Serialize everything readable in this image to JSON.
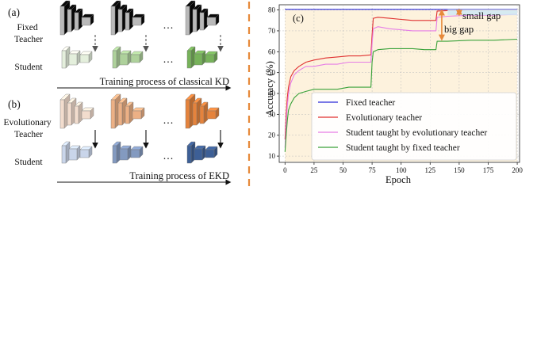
{
  "panel_a": {
    "tag": "(a)",
    "teacher_label": "Fixed\nTeacher",
    "student_label": "Student",
    "ellipsis": "···",
    "caption": "Training process of classical KD",
    "colors": {
      "teacher_fill": "#b9b9b9",
      "student_tint_start": "#e4efdc",
      "student_tint_end": "#77b25a",
      "arrow": "#555555"
    },
    "arrow_style": "dashed"
  },
  "panel_b": {
    "tag": "(b)",
    "teacher_label": "Evolutionary\nTeacher",
    "student_label": "Student",
    "ellipsis": "···",
    "caption": "Training process of EKD",
    "colors": {
      "teacher_tint_start": "#f2dccd",
      "teacher_tint_end": "#e5833c",
      "student_tint_start": "#c9d5ea",
      "student_tint_end": "#3d5f96",
      "arrow": "#111111"
    },
    "arrow_style": "solid"
  },
  "separator": {
    "color": "#e7893a",
    "style": "dashed"
  },
  "panel_c": {
    "tag": "(c)",
    "annotations": {
      "small_gap": "small gap",
      "big_gap": "big gap",
      "arrow_color": "#e7893a",
      "fill_color": "#fdf2dd"
    }
  },
  "chart_data": {
    "type": "line",
    "xlabel": "Epoch",
    "ylabel": "Accuracy (%)",
    "xlim": [
      -5,
      202
    ],
    "ylim": [
      7,
      82.5
    ],
    "xticks": [
      0,
      25,
      50,
      75,
      100,
      125,
      150,
      175,
      200
    ],
    "yticks": [
      10,
      20,
      30,
      40,
      50,
      60,
      70,
      80
    ],
    "grid": true,
    "legend_position": "lower-right",
    "series": [
      {
        "name": "Fixed teacher",
        "color": "#2a2ad8",
        "points": [
          [
            0,
            80.3
          ],
          [
            200,
            80.3
          ]
        ]
      },
      {
        "name": "Evolutionary teacher",
        "color": "#e03030",
        "points": [
          [
            0,
            18
          ],
          [
            1,
            30
          ],
          [
            2,
            38
          ],
          [
            3,
            43
          ],
          [
            5,
            48
          ],
          [
            8,
            51
          ],
          [
            12,
            53
          ],
          [
            18,
            55
          ],
          [
            25,
            56
          ],
          [
            35,
            57
          ],
          [
            45,
            57.5
          ],
          [
            55,
            58
          ],
          [
            65,
            58
          ],
          [
            74,
            58.5
          ],
          [
            75,
            68
          ],
          [
            76,
            76
          ],
          [
            80,
            76.5
          ],
          [
            90,
            76
          ],
          [
            100,
            75.5
          ],
          [
            110,
            75
          ],
          [
            120,
            75
          ],
          [
            130,
            75
          ],
          [
            131,
            79.5
          ],
          [
            140,
            79.7
          ],
          [
            160,
            80
          ],
          [
            180,
            80
          ],
          [
            200,
            80
          ]
        ]
      },
      {
        "name": "Student taught by evolutionary teacher",
        "color": "#e67de6",
        "points": [
          [
            0,
            14
          ],
          [
            1,
            25
          ],
          [
            2,
            34
          ],
          [
            3,
            40
          ],
          [
            5,
            45
          ],
          [
            8,
            49
          ],
          [
            12,
            51
          ],
          [
            18,
            53
          ],
          [
            25,
            53
          ],
          [
            35,
            54
          ],
          [
            45,
            54
          ],
          [
            55,
            55
          ],
          [
            65,
            55
          ],
          [
            74,
            55
          ],
          [
            75,
            64
          ],
          [
            76,
            71
          ],
          [
            80,
            72
          ],
          [
            90,
            71
          ],
          [
            100,
            70.5
          ],
          [
            110,
            70
          ],
          [
            120,
            70
          ],
          [
            130,
            70
          ],
          [
            131,
            76.5
          ],
          [
            140,
            77
          ],
          [
            160,
            77.5
          ],
          [
            180,
            77.5
          ],
          [
            200,
            78
          ]
        ]
      },
      {
        "name": "Student taught by fixed teacher",
        "color": "#3aa23a",
        "points": [
          [
            0,
            12
          ],
          [
            1,
            20
          ],
          [
            2,
            27
          ],
          [
            3,
            32
          ],
          [
            5,
            35
          ],
          [
            8,
            38
          ],
          [
            12,
            40
          ],
          [
            18,
            41
          ],
          [
            25,
            42
          ],
          [
            35,
            42
          ],
          [
            45,
            42
          ],
          [
            55,
            43
          ],
          [
            65,
            43
          ],
          [
            74,
            43
          ],
          [
            75,
            55
          ],
          [
            76,
            60
          ],
          [
            80,
            61
          ],
          [
            90,
            61.5
          ],
          [
            100,
            61.5
          ],
          [
            110,
            61.5
          ],
          [
            120,
            61
          ],
          [
            130,
            61
          ],
          [
            131,
            65
          ],
          [
            140,
            65
          ],
          [
            160,
            65.5
          ],
          [
            180,
            65.5
          ],
          [
            200,
            66
          ]
        ]
      }
    ]
  }
}
